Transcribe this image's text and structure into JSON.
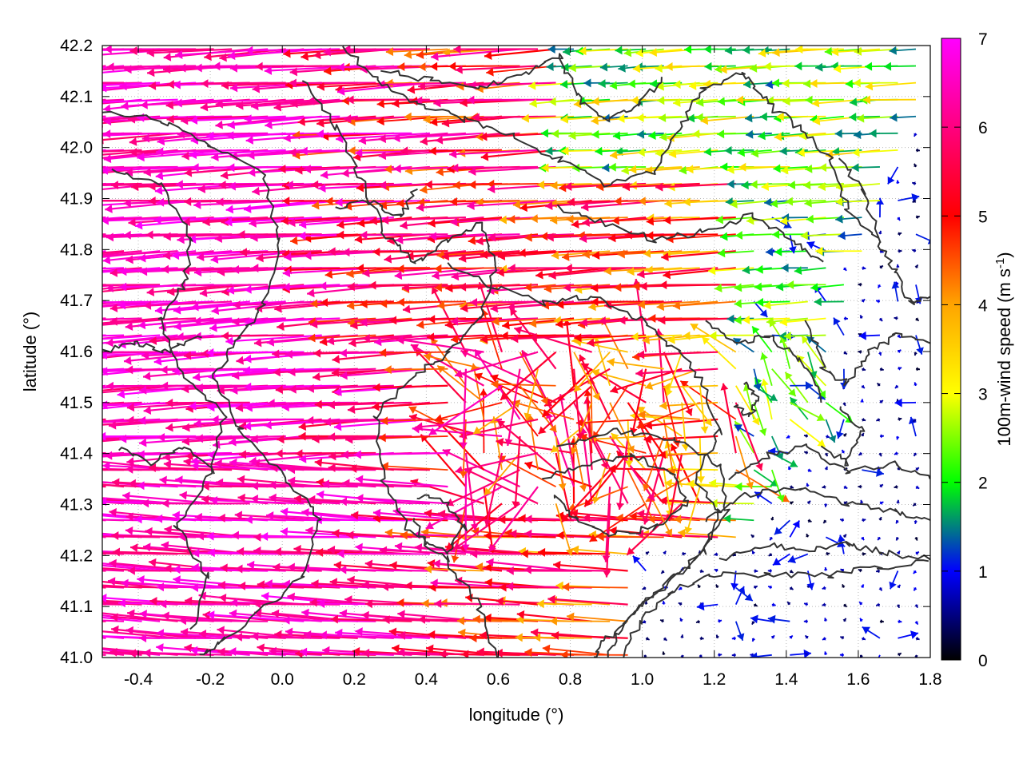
{
  "chart_data": {
    "type": "vector-field",
    "xlabel": "longitude (°)",
    "ylabel": "latitude (°)",
    "xlim": [
      -0.5,
      1.8
    ],
    "ylim": [
      41.0,
      42.2
    ],
    "xticks": [
      "-0.4",
      "-0.2",
      "0.0",
      "0.2",
      "0.4",
      "0.6",
      "0.8",
      "1.0",
      "1.2",
      "1.4",
      "1.6",
      "1.8"
    ],
    "yticks": [
      "41.0",
      "41.1",
      "41.2",
      "41.3",
      "41.4",
      "41.5",
      "41.6",
      "41.7",
      "41.8",
      "41.9",
      "42.0",
      "42.1",
      "42.2"
    ],
    "grid": true,
    "colorbar": {
      "label": "100m-wind speed (m s",
      "label_sup": "-1",
      "label_close": ")",
      "range": [
        0,
        7
      ],
      "ticks": [
        "0",
        "1",
        "2",
        "3",
        "4",
        "5",
        "6",
        "7"
      ],
      "stops": [
        "#000000",
        "#0000ff",
        "#00ff00",
        "#ffff00",
        "#ffa500",
        "#ff0000",
        "#ff00ff"
      ]
    },
    "vector_field": {
      "grid_step_lon": 0.05,
      "grid_step_lat": 0.033,
      "regions_speed_m_s": {
        "west_lowland": 7.0,
        "central_valley": 5.5,
        "northeast_hills": 2.5,
        "east_coast_sea": 0.6
      },
      "prevailing_direction": "westward (arrows point west)"
    }
  }
}
